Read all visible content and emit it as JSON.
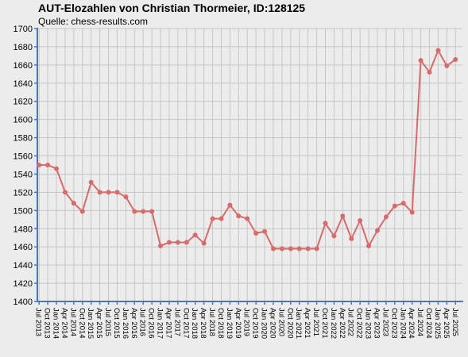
{
  "chart_data": {
    "type": "line",
    "title": "AUT-Elozahlen von Christian Thormeier, ID:128125",
    "subtitle": "Quelle: chess-results.com",
    "xlabel": "",
    "ylabel": "",
    "ylim": [
      1400,
      1700
    ],
    "ytick_step": 20,
    "grid": true,
    "legend": "none",
    "colors": {
      "line": "#d96a6a",
      "axis": "#2a80e0",
      "grid": "#c6c6c6",
      "background": "#ececec"
    },
    "categories": [
      "Jul 2013",
      "Oct 2013",
      "Jan 2014",
      "Apr 2014",
      "Jul 2014",
      "Oct 2014",
      "Jan 2015",
      "Apr 2015",
      "Jul 2015",
      "Oct 2015",
      "Jan 2016",
      "Apr 2016",
      "Jul 2016",
      "Oct 2016",
      "Jan 2017",
      "Apr 2017",
      "Jul 2017",
      "Oct 2017",
      "Jan 2018",
      "Apr 2018",
      "Jul 2018",
      "Oct 2018",
      "Jan 2019",
      "Apr 2019",
      "Jul 2019",
      "Oct 2019",
      "Jan 2020",
      "Apr 2020",
      "Jul 2020",
      "Oct 2020",
      "Jan 2021",
      "Apr 2021",
      "Jul 2021",
      "Oct 2021",
      "Jan 2022",
      "Apr 2022",
      "Jul 2022",
      "Oct 2022",
      "Jan 2023",
      "Apr 2023",
      "Jul 2023",
      "Oct 2023",
      "Jan 2024",
      "Apr 2024",
      "Jul 2024",
      "Oct 2024",
      "Jan 2025",
      "Apr 2025",
      "Jul 2025"
    ],
    "series": [
      {
        "values": [
          1550,
          1550,
          1546,
          1520,
          1508,
          1499,
          1531,
          1520,
          1520,
          1520,
          1515,
          1499,
          1499,
          1499,
          1461,
          1465,
          1465,
          1465,
          1473,
          1464,
          1491,
          1491,
          1506,
          1494,
          1491,
          1475,
          1477,
          1458,
          1458,
          1458,
          1458,
          1458,
          1458,
          1486,
          1472,
          1494,
          1469,
          1489,
          1461,
          1478,
          1493,
          1505,
          1508,
          1498,
          1665,
          1652,
          1676,
          1659,
          1666
        ]
      }
    ]
  }
}
